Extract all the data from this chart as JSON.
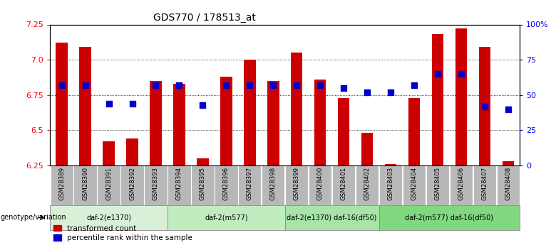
{
  "title": "GDS770 / 178513_at",
  "samples": [
    "GSM28389",
    "GSM28390",
    "GSM28391",
    "GSM28392",
    "GSM28393",
    "GSM28394",
    "GSM28395",
    "GSM28396",
    "GSM28397",
    "GSM28398",
    "GSM28399",
    "GSM28400",
    "GSM28401",
    "GSM28402",
    "GSM28403",
    "GSM28404",
    "GSM28405",
    "GSM28406",
    "GSM28407",
    "GSM28408"
  ],
  "red_values": [
    7.12,
    7.09,
    6.42,
    6.44,
    6.85,
    6.83,
    6.3,
    6.88,
    7.0,
    6.85,
    7.05,
    6.86,
    6.73,
    6.48,
    6.26,
    6.73,
    7.18,
    7.22,
    7.09,
    6.28
  ],
  "blue_percentile": [
    57,
    57,
    44,
    44,
    57,
    57,
    43,
    57,
    57,
    57,
    57,
    57,
    55,
    52,
    52,
    57,
    65,
    65,
    42,
    40
  ],
  "groups": [
    {
      "label": "daf-2(e1370)",
      "start": 0,
      "end": 4
    },
    {
      "label": "daf-2(m577)",
      "start": 5,
      "end": 9
    },
    {
      "label": "daf-2(e1370) daf-16(df50)",
      "start": 10,
      "end": 13
    },
    {
      "label": "daf-2(m577) daf-16(df50)",
      "start": 14,
      "end": 19
    }
  ],
  "group_colors": [
    "#d8f0d8",
    "#c0ecc0",
    "#a8e4a8",
    "#80d880"
  ],
  "ylim_left": [
    6.25,
    7.25
  ],
  "ylim_right": [
    0,
    100
  ],
  "yticks_left": [
    6.25,
    6.5,
    6.75,
    7.0,
    7.25
  ],
  "yticks_right": [
    0,
    25,
    50,
    75,
    100
  ],
  "ytick_labels_right": [
    "0",
    "25",
    "50",
    "75",
    "100%"
  ],
  "bar_color": "#cc0000",
  "dot_color": "#0000cc",
  "bar_width": 0.5,
  "dot_size": 30,
  "sample_bg_color": "#b8b8b8",
  "grid_ticks": [
    6.5,
    6.75,
    7.0
  ],
  "legend_labels": [
    "transformed count",
    "percentile rank within the sample"
  ]
}
